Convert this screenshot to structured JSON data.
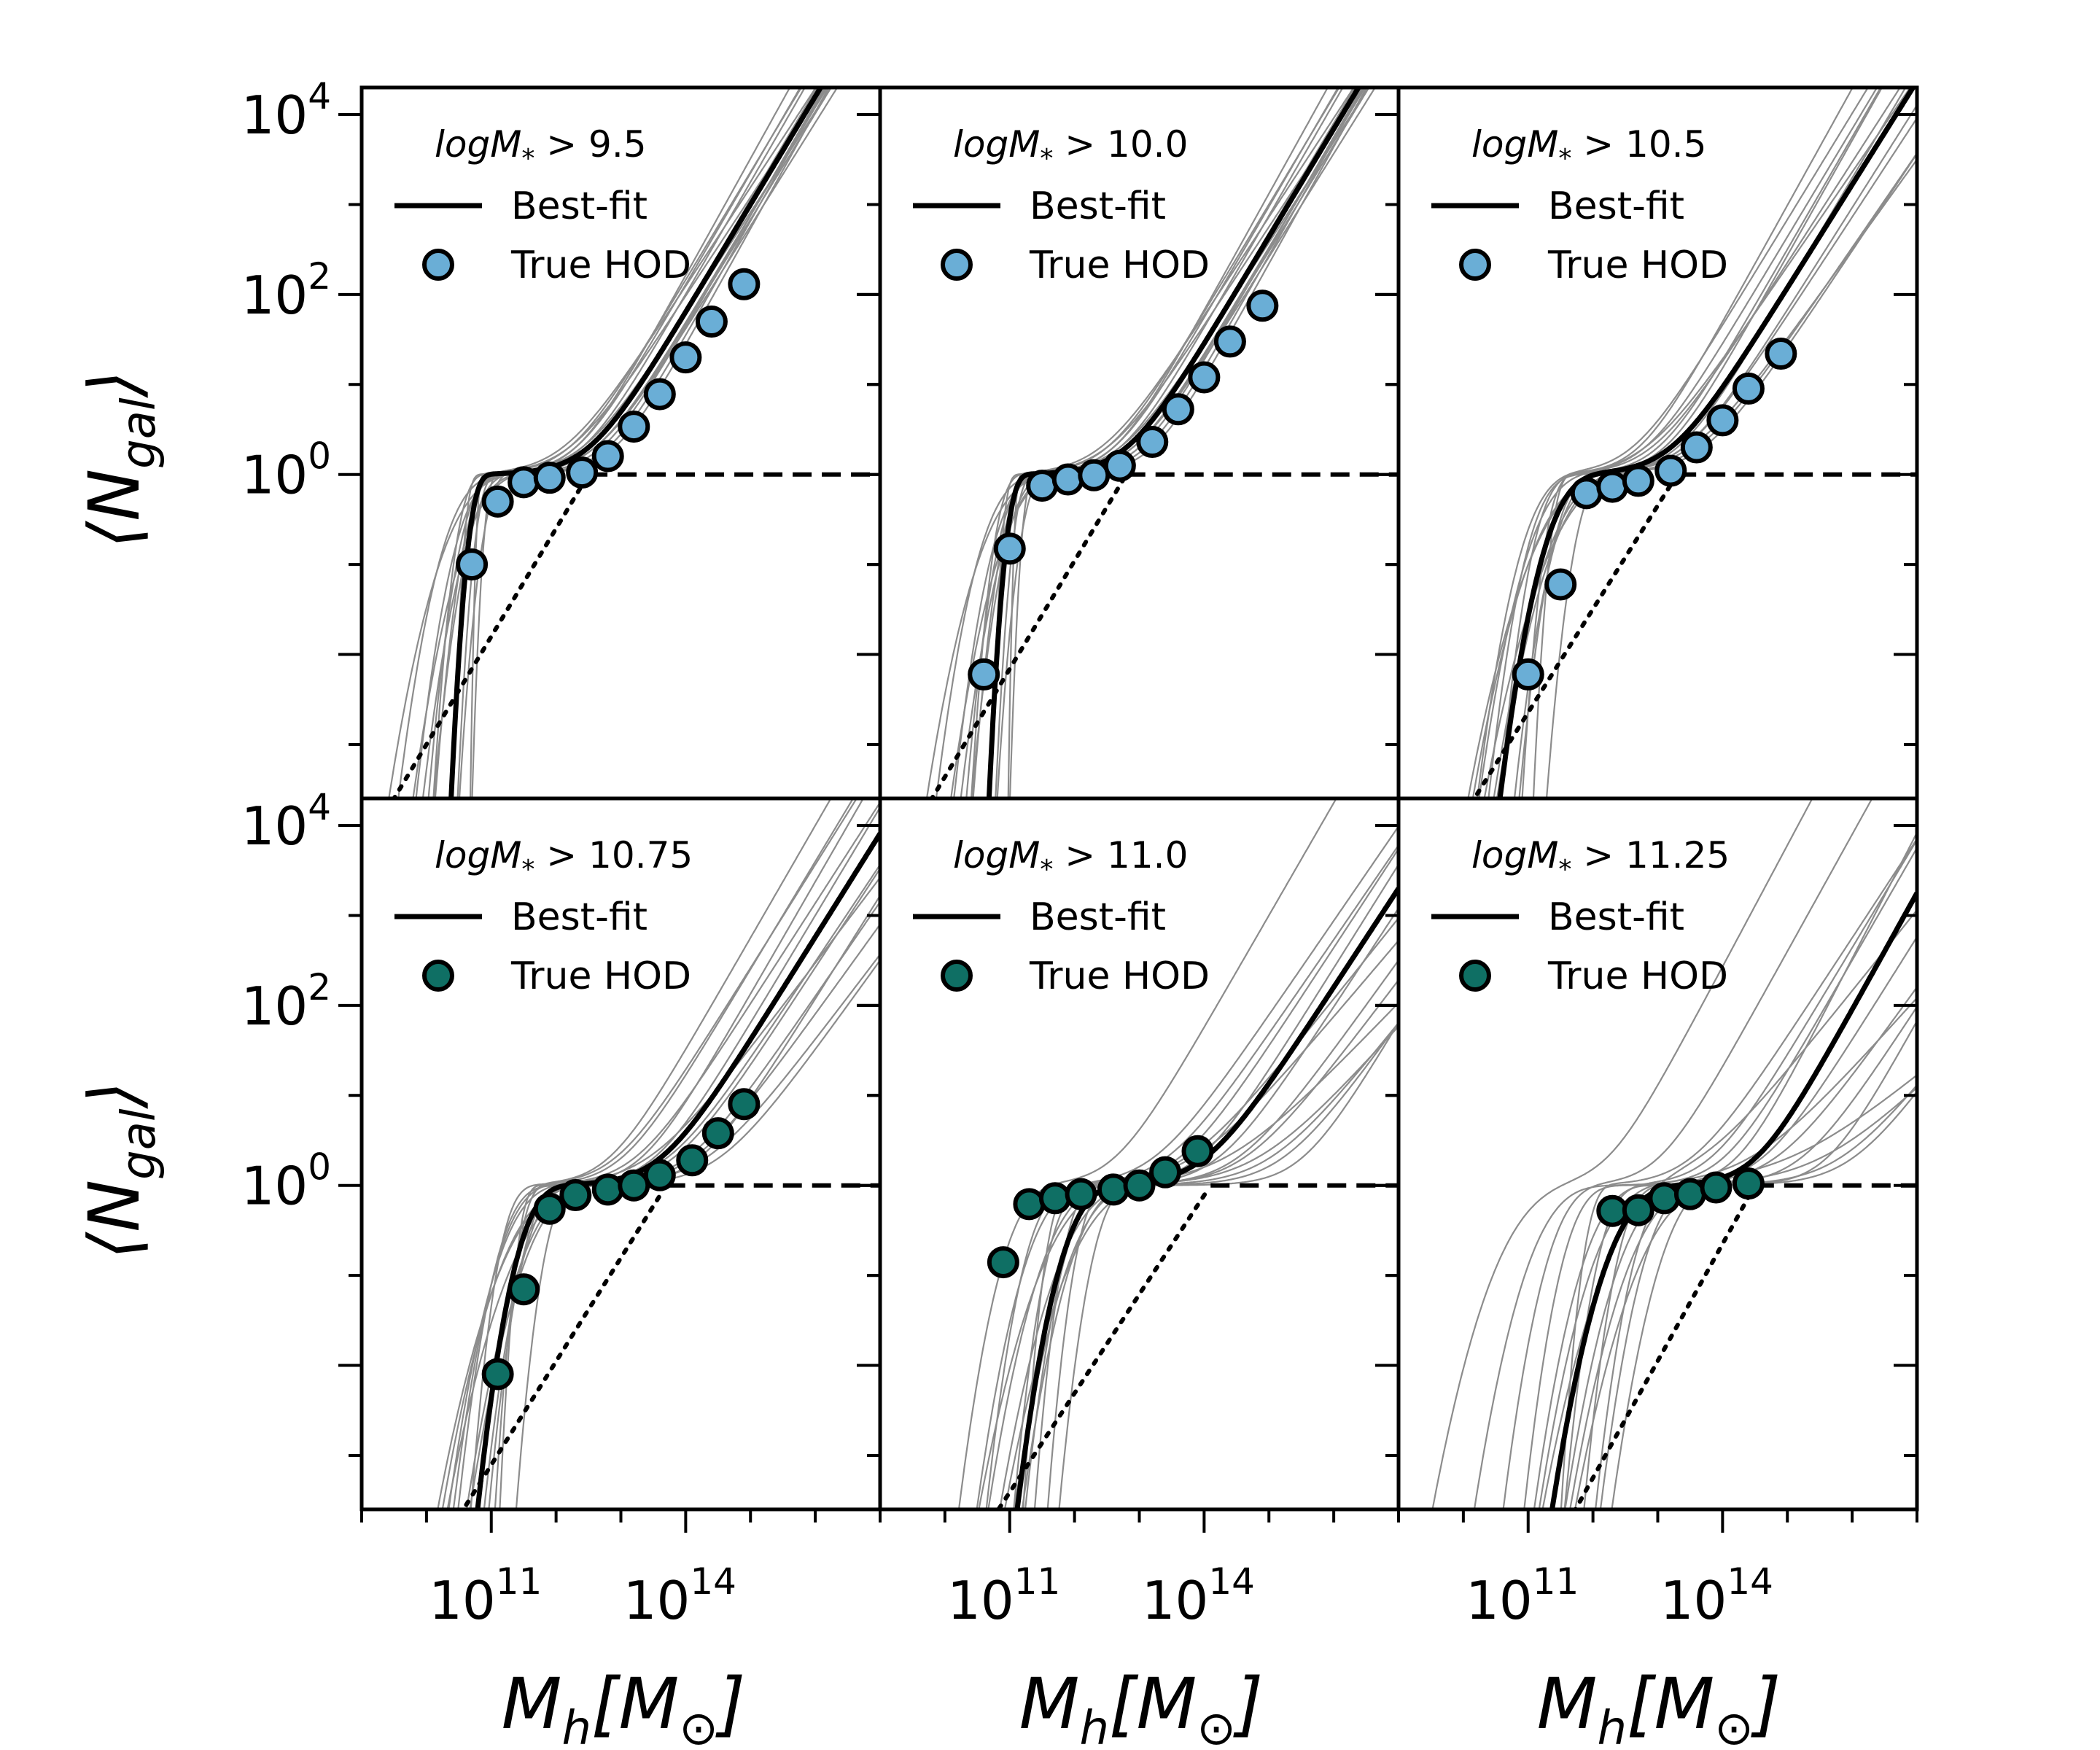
{
  "figure": {
    "ylabel_main": "⟨N",
    "ylabel_sub": "gal",
    "ylabel_close": "⟩",
    "xlabel_main": "M",
    "xlabel_sub": "h",
    "xlabel_rest": "[M",
    "xlabel_sub2": "⊙",
    "xlabel_close": "]",
    "ytick_labels": [
      {
        "base": "10",
        "exp": "4",
        "value": 4
      },
      {
        "base": "10",
        "exp": "2",
        "value": 2
      },
      {
        "base": "10",
        "exp": "0",
        "value": 0
      }
    ],
    "xtick_labels": [
      {
        "base": "10",
        "exp": "11",
        "value": 11
      },
      {
        "base": "10",
        "exp": "14",
        "value": 14
      }
    ],
    "legend_line_label": "Best-fit",
    "legend_marker_label": "True HOD"
  },
  "colors": {
    "light_blue": "#6aaed6",
    "teal": "#0f6f64",
    "model_grey": "#8c8c8c",
    "best_fit": "#000000"
  },
  "chart_data": [
    {
      "type": "line",
      "panel": "top-left",
      "title": "logM_* > 9.5",
      "title_parts": {
        "prefix": "logM",
        "sub": "*",
        "suffix": " > 9.5"
      },
      "marker_color": "#6aaed6",
      "xscale": "log",
      "yscale": "log",
      "xlim": [
        9,
        17
      ],
      "ylim": [
        -3.6,
        4.3
      ],
      "best_fit": {
        "logMmin": 10.75,
        "sigma": 0.15,
        "logM1": 12.5,
        "alpha": 1.2
      },
      "true_hod": {
        "log10_Mh": [
          10.7,
          11.1,
          11.5,
          11.9,
          12.4,
          12.8,
          13.2,
          13.6,
          14.0,
          14.4,
          14.9
        ],
        "N_gal": [
          0.1,
          0.5,
          0.82,
          0.92,
          1.05,
          1.6,
          3.4,
          7.8,
          20,
          50,
          130
        ]
      },
      "satellite_only": {
        "logM1": 12.5,
        "alpha": 1.2
      },
      "central_plateau": 1,
      "model_curves": [
        {
          "logMmin": 10.85,
          "sigma": 0.3,
          "logM1": 12.4,
          "alpha": 1.25
        },
        {
          "logMmin": 10.65,
          "sigma": 0.1,
          "logM1": 12.6,
          "alpha": 1.15
        },
        {
          "logMmin": 10.9,
          "sigma": 0.45,
          "logM1": 12.3,
          "alpha": 1.3
        },
        {
          "logMmin": 10.6,
          "sigma": 0.2,
          "logM1": 12.2,
          "alpha": 1.1
        },
        {
          "logMmin": 10.8,
          "sigma": 0.05,
          "logM1": 12.7,
          "alpha": 1.25
        },
        {
          "logMmin": 10.7,
          "sigma": 0.35,
          "logM1": 12.5,
          "alpha": 1.22
        },
        {
          "logMmin": 11.0,
          "sigma": 0.2,
          "logM1": 12.2,
          "alpha": 1.2
        },
        {
          "logMmin": 10.55,
          "sigma": 0.4,
          "logM1": 12.8,
          "alpha": 1.28
        },
        {
          "logMmin": 10.75,
          "sigma": 0.25,
          "logM1": 12.6,
          "alpha": 1.18
        },
        {
          "logMmin": 10.95,
          "sigma": 0.1,
          "logM1": 12.4,
          "alpha": 1.12
        },
        {
          "logMmin": 10.65,
          "sigma": 0.5,
          "logM1": 12.3,
          "alpha": 1.24
        },
        {
          "logMmin": 10.85,
          "sigma": 0.15,
          "logM1": 12.9,
          "alpha": 1.3
        },
        {
          "logMmin": 10.72,
          "sigma": 0.28,
          "logM1": 12.1,
          "alpha": 1.1
        },
        {
          "logMmin": 10.88,
          "sigma": 0.38,
          "logM1": 12.6,
          "alpha": 1.2
        }
      ]
    },
    {
      "type": "line",
      "panel": "top-middle",
      "title": "logM_* > 10.0",
      "title_parts": {
        "prefix": "logM",
        "sub": "*",
        "suffix": " > 10.0"
      },
      "marker_color": "#6aaed6",
      "xscale": "log",
      "yscale": "log",
      "xlim": [
        9,
        17
      ],
      "ylim": [
        -3.6,
        4.3
      ],
      "best_fit": {
        "logMmin": 11.05,
        "sigma": 0.15,
        "logM1": 12.8,
        "alpha": 1.2
      },
      "true_hod": {
        "log10_Mh": [
          10.6,
          11.0,
          11.5,
          11.9,
          12.3,
          12.7,
          13.2,
          13.6,
          14.0,
          14.4,
          14.9
        ],
        "N_gal": [
          0.006,
          0.15,
          0.75,
          0.88,
          0.98,
          1.25,
          2.3,
          5.3,
          12,
          30,
          75
        ]
      },
      "satellite_only": {
        "logM1": 12.8,
        "alpha": 1.2
      },
      "central_plateau": 1,
      "model_curves": [
        {
          "logMmin": 11.15,
          "sigma": 0.3,
          "logM1": 12.7,
          "alpha": 1.25
        },
        {
          "logMmin": 10.95,
          "sigma": 0.1,
          "logM1": 12.9,
          "alpha": 1.15
        },
        {
          "logMmin": 11.2,
          "sigma": 0.45,
          "logM1": 12.6,
          "alpha": 1.3
        },
        {
          "logMmin": 10.9,
          "sigma": 0.2,
          "logM1": 12.5,
          "alpha": 1.1
        },
        {
          "logMmin": 11.1,
          "sigma": 0.05,
          "logM1": 13.0,
          "alpha": 1.25
        },
        {
          "logMmin": 11.0,
          "sigma": 0.35,
          "logM1": 12.8,
          "alpha": 1.22
        },
        {
          "logMmin": 11.3,
          "sigma": 0.2,
          "logM1": 12.5,
          "alpha": 1.2
        },
        {
          "logMmin": 10.85,
          "sigma": 0.4,
          "logM1": 13.1,
          "alpha": 1.28
        },
        {
          "logMmin": 11.05,
          "sigma": 0.25,
          "logM1": 12.9,
          "alpha": 1.18
        },
        {
          "logMmin": 11.25,
          "sigma": 0.1,
          "logM1": 12.7,
          "alpha": 1.12
        },
        {
          "logMmin": 10.95,
          "sigma": 0.5,
          "logM1": 12.6,
          "alpha": 1.24
        },
        {
          "logMmin": 11.15,
          "sigma": 0.15,
          "logM1": 13.2,
          "alpha": 1.3
        },
        {
          "logMmin": 11.02,
          "sigma": 0.28,
          "logM1": 12.4,
          "alpha": 1.1
        },
        {
          "logMmin": 11.18,
          "sigma": 0.38,
          "logM1": 12.9,
          "alpha": 1.2
        }
      ]
    },
    {
      "type": "line",
      "panel": "top-right",
      "title": "logM_* > 10.5",
      "title_parts": {
        "prefix": "logM",
        "sub": "*",
        "suffix": " > 10.5"
      },
      "marker_color": "#6aaed6",
      "xscale": "log",
      "yscale": "log",
      "xlim": [
        9,
        17
      ],
      "ylim": [
        -3.6,
        4.3
      ],
      "best_fit": {
        "logMmin": 11.55,
        "sigma": 0.4,
        "logM1": 13.2,
        "alpha": 1.15
      },
      "true_hod": {
        "log10_Mh": [
          11.0,
          11.5,
          11.9,
          12.3,
          12.7,
          13.2,
          13.6,
          14.0,
          14.4,
          14.9
        ],
        "N_gal": [
          0.006,
          0.06,
          0.62,
          0.73,
          0.85,
          1.1,
          2.0,
          4.0,
          9,
          22
        ]
      },
      "satellite_only": {
        "logM1": 13.3,
        "alpha": 1.15
      },
      "central_plateau": 1,
      "model_curves": [
        {
          "logMmin": 11.3,
          "sigma": 0.3,
          "logM1": 12.8,
          "alpha": 1.2
        },
        {
          "logMmin": 11.7,
          "sigma": 0.5,
          "logM1": 13.4,
          "alpha": 1.1
        },
        {
          "logMmin": 11.4,
          "sigma": 0.2,
          "logM1": 13.0,
          "alpha": 1.25
        },
        {
          "logMmin": 11.8,
          "sigma": 0.6,
          "logM1": 13.6,
          "alpha": 1.05
        },
        {
          "logMmin": 11.2,
          "sigma": 0.4,
          "logM1": 12.6,
          "alpha": 1.18
        },
        {
          "logMmin": 11.6,
          "sigma": 0.3,
          "logM1": 13.3,
          "alpha": 1.22
        },
        {
          "logMmin": 11.5,
          "sigma": 0.55,
          "logM1": 13.5,
          "alpha": 1.0
        },
        {
          "logMmin": 11.9,
          "sigma": 0.25,
          "logM1": 13.1,
          "alpha": 1.28
        },
        {
          "logMmin": 11.35,
          "sigma": 0.45,
          "logM1": 12.9,
          "alpha": 1.12
        },
        {
          "logMmin": 11.65,
          "sigma": 0.35,
          "logM1": 13.7,
          "alpha": 1.08
        },
        {
          "logMmin": 11.45,
          "sigma": 0.15,
          "logM1": 12.7,
          "alpha": 1.3
        },
        {
          "logMmin": 11.75,
          "sigma": 0.5,
          "logM1": 13.2,
          "alpha": 1.16
        },
        {
          "logMmin": 11.25,
          "sigma": 0.35,
          "logM1": 13.4,
          "alpha": 1.14
        },
        {
          "logMmin": 11.55,
          "sigma": 0.6,
          "logM1": 12.8,
          "alpha": 1.05
        }
      ]
    },
    {
      "type": "line",
      "panel": "bottom-left",
      "title": "logM_* > 10.75",
      "title_parts": {
        "prefix": "logM",
        "sub": "*",
        "suffix": " > 10.75"
      },
      "marker_color": "#0f6f64",
      "xscale": "log",
      "yscale": "log",
      "xlim": [
        9,
        17
      ],
      "ylim": [
        -3.6,
        4.3
      ],
      "best_fit": {
        "logMmin": 11.65,
        "sigma": 0.35,
        "logM1": 13.6,
        "alpha": 1.15
      },
      "true_hod": {
        "log10_Mh": [
          11.1,
          11.5,
          11.9,
          12.3,
          12.8,
          13.2,
          13.6,
          14.1,
          14.5,
          14.9
        ],
        "N_gal": [
          0.008,
          0.07,
          0.55,
          0.78,
          0.9,
          1.0,
          1.3,
          1.9,
          3.8,
          8
        ]
      },
      "satellite_only": {
        "logM1": 13.7,
        "alpha": 1.15
      },
      "central_plateau": 1,
      "model_curves": [
        {
          "logMmin": 11.3,
          "sigma": 0.25,
          "logM1": 13.0,
          "alpha": 1.2
        },
        {
          "logMmin": 11.9,
          "sigma": 0.5,
          "logM1": 14.0,
          "alpha": 1.05
        },
        {
          "logMmin": 11.5,
          "sigma": 0.15,
          "logM1": 13.3,
          "alpha": 1.25
        },
        {
          "logMmin": 11.8,
          "sigma": 0.6,
          "logM1": 14.3,
          "alpha": 0.95
        },
        {
          "logMmin": 11.4,
          "sigma": 0.4,
          "logM1": 12.9,
          "alpha": 1.15
        },
        {
          "logMmin": 11.7,
          "sigma": 0.3,
          "logM1": 13.8,
          "alpha": 1.1
        },
        {
          "logMmin": 11.6,
          "sigma": 0.55,
          "logM1": 14.5,
          "alpha": 1.0
        },
        {
          "logMmin": 12.0,
          "sigma": 0.25,
          "logM1": 13.5,
          "alpha": 1.2
        },
        {
          "logMmin": 11.45,
          "sigma": 0.45,
          "logM1": 13.2,
          "alpha": 1.12
        },
        {
          "logMmin": 11.75,
          "sigma": 0.35,
          "logM1": 14.1,
          "alpha": 1.0
        },
        {
          "logMmin": 11.55,
          "sigma": 0.2,
          "logM1": 12.8,
          "alpha": 1.25
        },
        {
          "logMmin": 11.85,
          "sigma": 0.5,
          "logM1": 13.7,
          "alpha": 1.08
        },
        {
          "logMmin": 11.35,
          "sigma": 0.35,
          "logM1": 14.2,
          "alpha": 1.15
        },
        {
          "logMmin": 11.65,
          "sigma": 0.6,
          "logM1": 13.4,
          "alpha": 0.95
        }
      ]
    },
    {
      "type": "line",
      "panel": "bottom-middle",
      "title": "logM_* > 11.0",
      "title_parts": {
        "prefix": "logM",
        "sub": "*",
        "suffix": " > 11.0"
      },
      "marker_color": "#0f6f64",
      "xscale": "log",
      "yscale": "log",
      "xlim": [
        9,
        17
      ],
      "ylim": [
        -3.6,
        4.3
      ],
      "best_fit": {
        "logMmin": 12.1,
        "sigma": 0.4,
        "logM1": 14.0,
        "alpha": 1.1
      },
      "true_hod": {
        "log10_Mh": [
          10.9,
          11.3,
          11.7,
          12.1,
          12.6,
          13.0,
          13.4,
          13.9
        ],
        "N_gal": [
          0.14,
          0.62,
          0.72,
          0.8,
          0.9,
          1.0,
          1.4,
          2.4
        ]
      },
      "satellite_only": {
        "logM1": 14.1,
        "alpha": 1.1
      },
      "central_plateau": 1,
      "model_curves": [
        {
          "logMmin": 11.2,
          "sigma": 0.4,
          "logM1": 12.6,
          "alpha": 1.25
        },
        {
          "logMmin": 12.3,
          "sigma": 0.5,
          "logM1": 14.5,
          "alpha": 1.0
        },
        {
          "logMmin": 11.8,
          "sigma": 0.3,
          "logM1": 13.6,
          "alpha": 1.1
        },
        {
          "logMmin": 12.4,
          "sigma": 0.6,
          "logM1": 15.0,
          "alpha": 0.9
        },
        {
          "logMmin": 11.6,
          "sigma": 0.45,
          "logM1": 13.2,
          "alpha": 1.05
        },
        {
          "logMmin": 12.0,
          "sigma": 0.25,
          "logM1": 14.2,
          "alpha": 1.1
        },
        {
          "logMmin": 12.2,
          "sigma": 0.55,
          "logM1": 14.8,
          "alpha": 0.8
        },
        {
          "logMmin": 12.5,
          "sigma": 0.3,
          "logM1": 13.9,
          "alpha": 1.15
        },
        {
          "logMmin": 11.9,
          "sigma": 0.5,
          "logM1": 13.8,
          "alpha": 0.85
        },
        {
          "logMmin": 12.1,
          "sigma": 0.35,
          "logM1": 15.2,
          "alpha": 1.0
        },
        {
          "logMmin": 11.7,
          "sigma": 0.2,
          "logM1": 13.4,
          "alpha": 1.05
        },
        {
          "logMmin": 12.3,
          "sigma": 0.45,
          "logM1": 14.3,
          "alpha": 0.75
        },
        {
          "logMmin": 11.5,
          "sigma": 0.35,
          "logM1": 14.6,
          "alpha": 0.95
        },
        {
          "logMmin": 12.0,
          "sigma": 0.6,
          "logM1": 13.7,
          "alpha": 0.9
        },
        {
          "logMmin": 12.2,
          "sigma": 0.25,
          "logM1": 15.5,
          "alpha": 1.2
        }
      ]
    },
    {
      "type": "line",
      "panel": "bottom-right",
      "title": "logM_* > 11.25",
      "title_parts": {
        "prefix": "logM",
        "sub": "*",
        "suffix": " > 11.25"
      },
      "marker_color": "#0f6f64",
      "xscale": "log",
      "yscale": "log",
      "xlim": [
        9,
        17
      ],
      "ylim": [
        -3.6,
        4.3
      ],
      "best_fit": {
        "logMmin": 12.6,
        "sigma": 0.5,
        "logM1": 14.5,
        "alpha": 1.3
      },
      "true_hod": {
        "log10_Mh": [
          12.3,
          12.7,
          13.1,
          13.5,
          13.9,
          14.4
        ],
        "N_gal": [
          0.52,
          0.53,
          0.72,
          0.8,
          0.95,
          1.05
        ]
      },
      "satellite_only": {
        "logM1": 14.5,
        "alpha": 1.3
      },
      "central_plateau": 1,
      "model_curves": [
        {
          "logMmin": 11.0,
          "sigma": 0.6,
          "logM1": 12.2,
          "alpha": 1.35
        },
        {
          "logMmin": 12.8,
          "sigma": 0.5,
          "logM1": 15.2,
          "alpha": 1.1
        },
        {
          "logMmin": 11.6,
          "sigma": 0.4,
          "logM1": 13.0,
          "alpha": 1.3
        },
        {
          "logMmin": 13.2,
          "sigma": 0.6,
          "logM1": 15.8,
          "alpha": 0.9
        },
        {
          "logMmin": 12.2,
          "sigma": 0.45,
          "logM1": 13.8,
          "alpha": 1.2
        },
        {
          "logMmin": 12.6,
          "sigma": 0.3,
          "logM1": 14.8,
          "alpha": 1.0
        },
        {
          "logMmin": 13.0,
          "sigma": 0.55,
          "logM1": 15.5,
          "alpha": 0.7
        },
        {
          "logMmin": 11.8,
          "sigma": 0.35,
          "logM1": 14.2,
          "alpha": 1.4
        },
        {
          "logMmin": 12.4,
          "sigma": 0.5,
          "logM1": 14.4,
          "alpha": 0.8
        },
        {
          "logMmin": 12.9,
          "sigma": 0.35,
          "logM1": 16.0,
          "alpha": 1.0
        },
        {
          "logMmin": 12.0,
          "sigma": 0.2,
          "logM1": 13.5,
          "alpha": 1.1
        },
        {
          "logMmin": 13.4,
          "sigma": 0.45,
          "logM1": 15.0,
          "alpha": 0.6
        },
        {
          "logMmin": 11.4,
          "sigma": 0.5,
          "logM1": 14.0,
          "alpha": 1.25
        },
        {
          "logMmin": 12.7,
          "sigma": 0.6,
          "logM1": 13.6,
          "alpha": 0.9
        },
        {
          "logMmin": 12.3,
          "sigma": 0.3,
          "logM1": 15.6,
          "alpha": 1.3
        },
        {
          "logMmin": 13.1,
          "sigma": 0.4,
          "logM1": 14.6,
          "alpha": 1.15
        }
      ]
    }
  ]
}
